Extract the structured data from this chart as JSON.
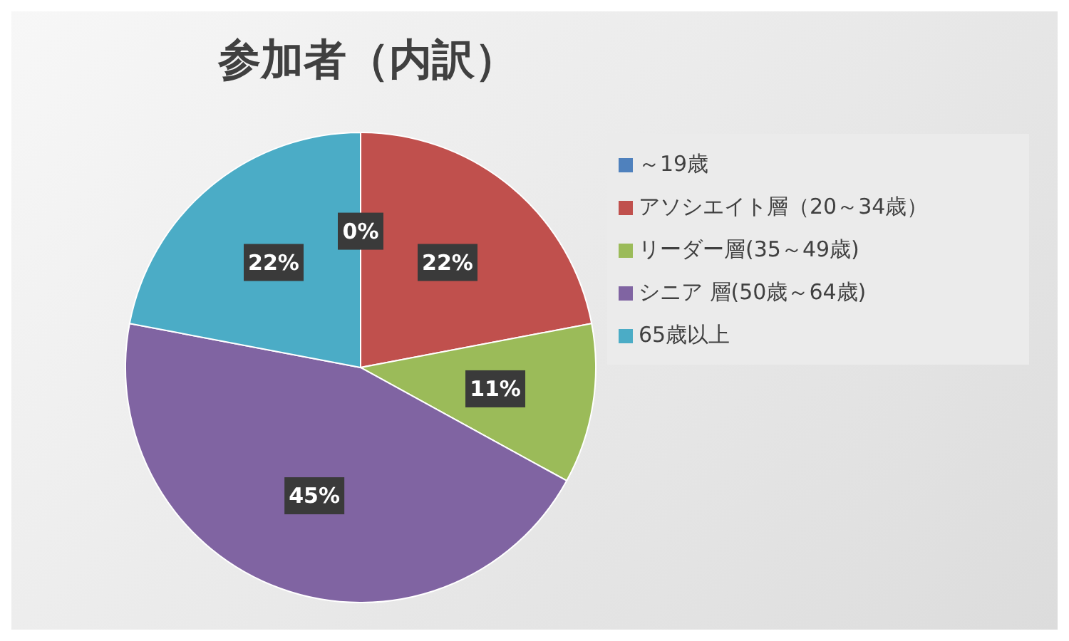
{
  "chart_data": {
    "type": "pie",
    "title": "参加者（内訳）",
    "categories": [
      "～19歳",
      "アソシエイト層（20～34歳）",
      "リーダー層(35～49歳)",
      "シニア 層(50歳～64歳)",
      "65歳以上"
    ],
    "values": [
      0,
      22,
      11,
      45,
      22
    ],
    "value_labels": [
      "0%",
      "22%",
      "11%",
      "45%",
      "22%"
    ],
    "colors": [
      "#4f81bd",
      "#c0504d",
      "#9bbb59",
      "#8064a2",
      "#4bacc6"
    ],
    "legend": "right"
  }
}
